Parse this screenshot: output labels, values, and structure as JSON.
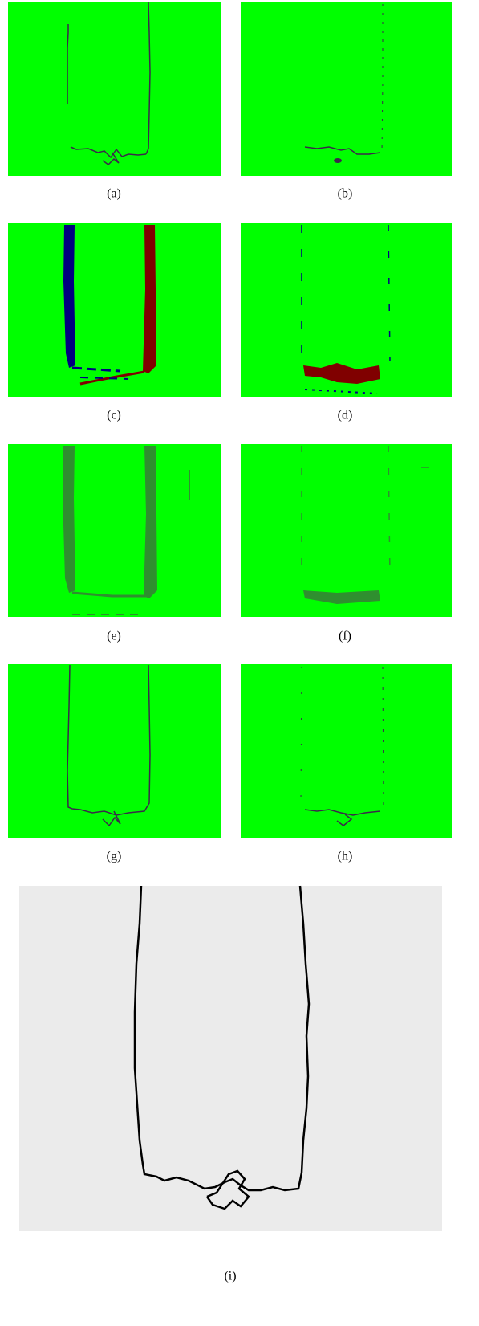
{
  "figure": {
    "labels": [
      "(a)",
      "(b)",
      "(c)",
      "(d)",
      "(e)",
      "(f)",
      "(g)",
      "(h)",
      "(i)"
    ]
  }
}
